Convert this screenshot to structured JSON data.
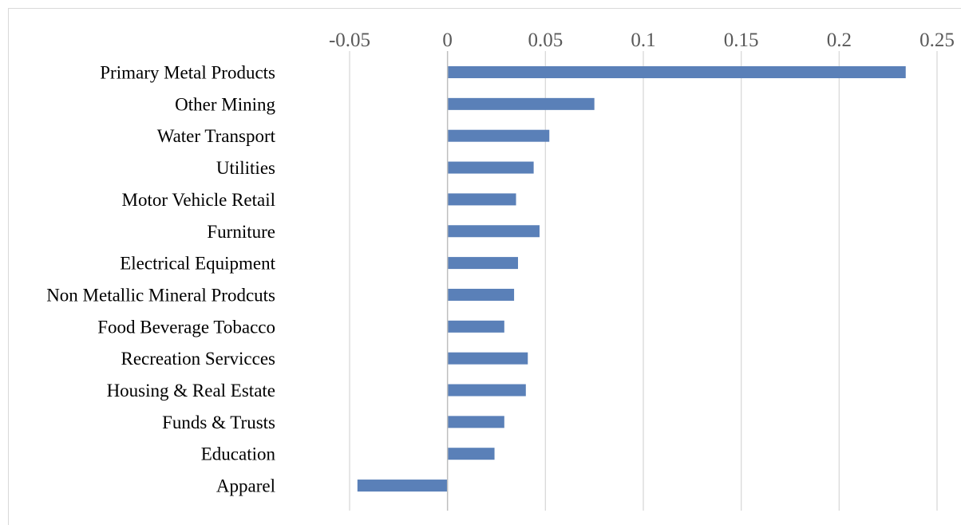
{
  "chart_data": {
    "type": "bar",
    "orientation": "horizontal",
    "title": "",
    "xlabel": "",
    "ylabel": "",
    "categories": [
      "Primary Metal Products",
      "Other Mining",
      "Water Transport",
      "Utilities",
      "Motor Vehicle Retail",
      "Furniture",
      "Electrical Equipment",
      "Non Metallic Mineral Prodcuts",
      "Food Beverage Tobacco",
      "Recreation Servicces",
      "Housing & Real Estate",
      "Funds & Trusts",
      "Education",
      "Apparel"
    ],
    "values": [
      0.234,
      0.075,
      0.052,
      0.044,
      0.035,
      0.047,
      0.036,
      0.034,
      0.029,
      0.041,
      0.04,
      0.029,
      0.024,
      -0.046
    ],
    "xlim": [
      -0.05,
      0.25
    ],
    "xticks": [
      -0.05,
      0,
      0.05,
      0.1,
      0.15,
      0.2,
      0.25
    ],
    "xtick_labels": [
      "-0.05",
      "0",
      "0.05",
      "0.1",
      "0.15",
      "0.2",
      "0.25"
    ],
    "axis_position": "top",
    "grid": "vertical",
    "legend": "none",
    "colors": {
      "bar": "#5a80b8",
      "grid": "#d9d9d9",
      "axis": "#bfbfbf",
      "tick_text": "#595959"
    }
  }
}
